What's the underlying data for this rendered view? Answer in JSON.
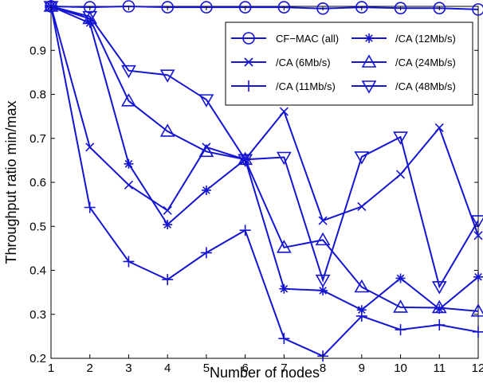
{
  "chart_data": {
    "type": "line",
    "xlabel": "Number of nodes",
    "ylabel": "Throughput ratio min/max",
    "xlim": [
      1,
      12
    ],
    "ylim": [
      0.2,
      1.0
    ],
    "x": [
      1,
      2,
      3,
      4,
      5,
      6,
      7,
      8,
      9,
      10,
      11,
      12
    ],
    "xticks": [
      "1",
      "2",
      "3",
      "4",
      "5",
      "6",
      "7",
      "8",
      "9",
      "10",
      "11",
      "12"
    ],
    "yticks": [
      "0.2",
      "0.3",
      "0.4",
      "0.5",
      "0.6",
      "0.7",
      "0.8",
      "0.9"
    ],
    "grid": false,
    "legend_position": "top-right",
    "line_color": "#1414d2",
    "series": [
      {
        "name": "CF−MAC (all)",
        "marker": "circle",
        "values": [
          1.0,
          0.998,
          1.0,
          0.998,
          0.998,
          0.998,
          0.998,
          0.995,
          0.998,
          0.996,
          0.996,
          0.993
        ]
      },
      {
        "name": "/CA (6Mb/s)",
        "marker": "x",
        "values": [
          1.0,
          0.68,
          0.594,
          0.536,
          0.68,
          0.652,
          0.761,
          0.513,
          0.545,
          0.618,
          0.724,
          0.479
        ]
      },
      {
        "name": "/CA (11Mb/s)",
        "marker": "plus",
        "values": [
          1.0,
          0.543,
          0.42,
          0.379,
          0.44,
          0.491,
          0.245,
          0.205,
          0.296,
          0.265,
          0.276,
          0.26
        ]
      },
      {
        "name": "/CA (12Mb/s)",
        "marker": "star",
        "values": [
          1.0,
          0.962,
          0.642,
          0.504,
          0.582,
          0.652,
          0.358,
          0.354,
          0.31,
          0.382,
          0.312,
          0.385
        ]
      },
      {
        "name": "/CA (24Mb/s)",
        "marker": "triangle-up",
        "values": [
          1.0,
          0.972,
          0.785,
          0.716,
          0.67,
          0.652,
          0.452,
          0.469,
          0.362,
          0.316,
          0.315,
          0.307
        ]
      },
      {
        "name": "/CA (48Mb/s)",
        "marker": "triangle-down",
        "values": [
          1.0,
          0.977,
          0.854,
          0.844,
          0.788,
          0.652,
          0.657,
          0.378,
          0.658,
          0.703,
          0.363,
          0.513
        ]
      }
    ]
  }
}
